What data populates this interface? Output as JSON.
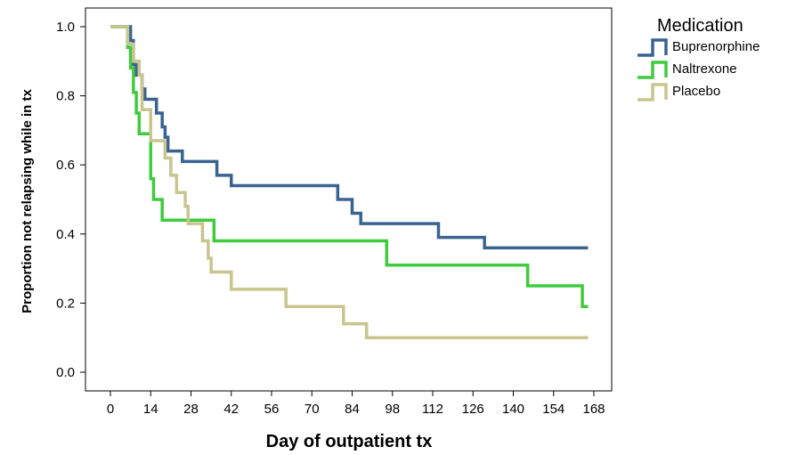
{
  "chart_data": {
    "type": "line",
    "step": true,
    "xlabel": "Day of outpatient tx",
    "ylabel": "Proportion not relapsing while in tx",
    "xlim": [
      0,
      168
    ],
    "ylim": [
      0,
      1
    ],
    "x_ticks": [
      "0",
      "14",
      "28",
      "42",
      "56",
      "70",
      "84",
      "98",
      "112",
      "126",
      "140",
      "154",
      "168"
    ],
    "y_ticks": [
      "0.0",
      "0.2",
      "0.4",
      "0.6",
      "0.8",
      "1.0"
    ],
    "grid": false,
    "legend": {
      "title": "Medication",
      "placement": "outside-top-right"
    },
    "series": [
      {
        "name": "Buprenorphine",
        "color": "#3a6391",
        "points": [
          [
            0,
            1.0
          ],
          [
            7,
            0.96
          ],
          [
            8,
            0.89
          ],
          [
            9,
            0.86
          ],
          [
            11,
            0.82
          ],
          [
            12,
            0.79
          ],
          [
            16,
            0.75
          ],
          [
            18,
            0.71
          ],
          [
            19,
            0.68
          ],
          [
            20,
            0.64
          ],
          [
            25,
            0.61
          ],
          [
            37,
            0.57
          ],
          [
            42,
            0.54
          ],
          [
            79,
            0.5
          ],
          [
            84,
            0.46
          ],
          [
            87,
            0.43
          ],
          [
            114,
            0.39
          ],
          [
            130,
            0.36
          ],
          [
            166,
            0.36
          ]
        ]
      },
      {
        "name": "Naltrexone",
        "color": "#3fcb3c",
        "points": [
          [
            0,
            1.0
          ],
          [
            6,
            0.94
          ],
          [
            7,
            0.88
          ],
          [
            8,
            0.81
          ],
          [
            9,
            0.75
          ],
          [
            10,
            0.69
          ],
          [
            14,
            0.56
          ],
          [
            15,
            0.5
          ],
          [
            18,
            0.44
          ],
          [
            36,
            0.38
          ],
          [
            96,
            0.31
          ],
          [
            145,
            0.25
          ],
          [
            164,
            0.19
          ],
          [
            166,
            0.19
          ]
        ]
      },
      {
        "name": "Placebo",
        "color": "#c8c58e",
        "points": [
          [
            0,
            1.0
          ],
          [
            6,
            0.95
          ],
          [
            8,
            0.9
          ],
          [
            10,
            0.86
          ],
          [
            11,
            0.76
          ],
          [
            14,
            0.67
          ],
          [
            19,
            0.62
          ],
          [
            21,
            0.57
          ],
          [
            23,
            0.52
          ],
          [
            26,
            0.48
          ],
          [
            27,
            0.43
          ],
          [
            32,
            0.38
          ],
          [
            34,
            0.33
          ],
          [
            35,
            0.29
          ],
          [
            42,
            0.24
          ],
          [
            61,
            0.19
          ],
          [
            81,
            0.14
          ],
          [
            89,
            0.1
          ],
          [
            166,
            0.1
          ]
        ]
      }
    ]
  }
}
